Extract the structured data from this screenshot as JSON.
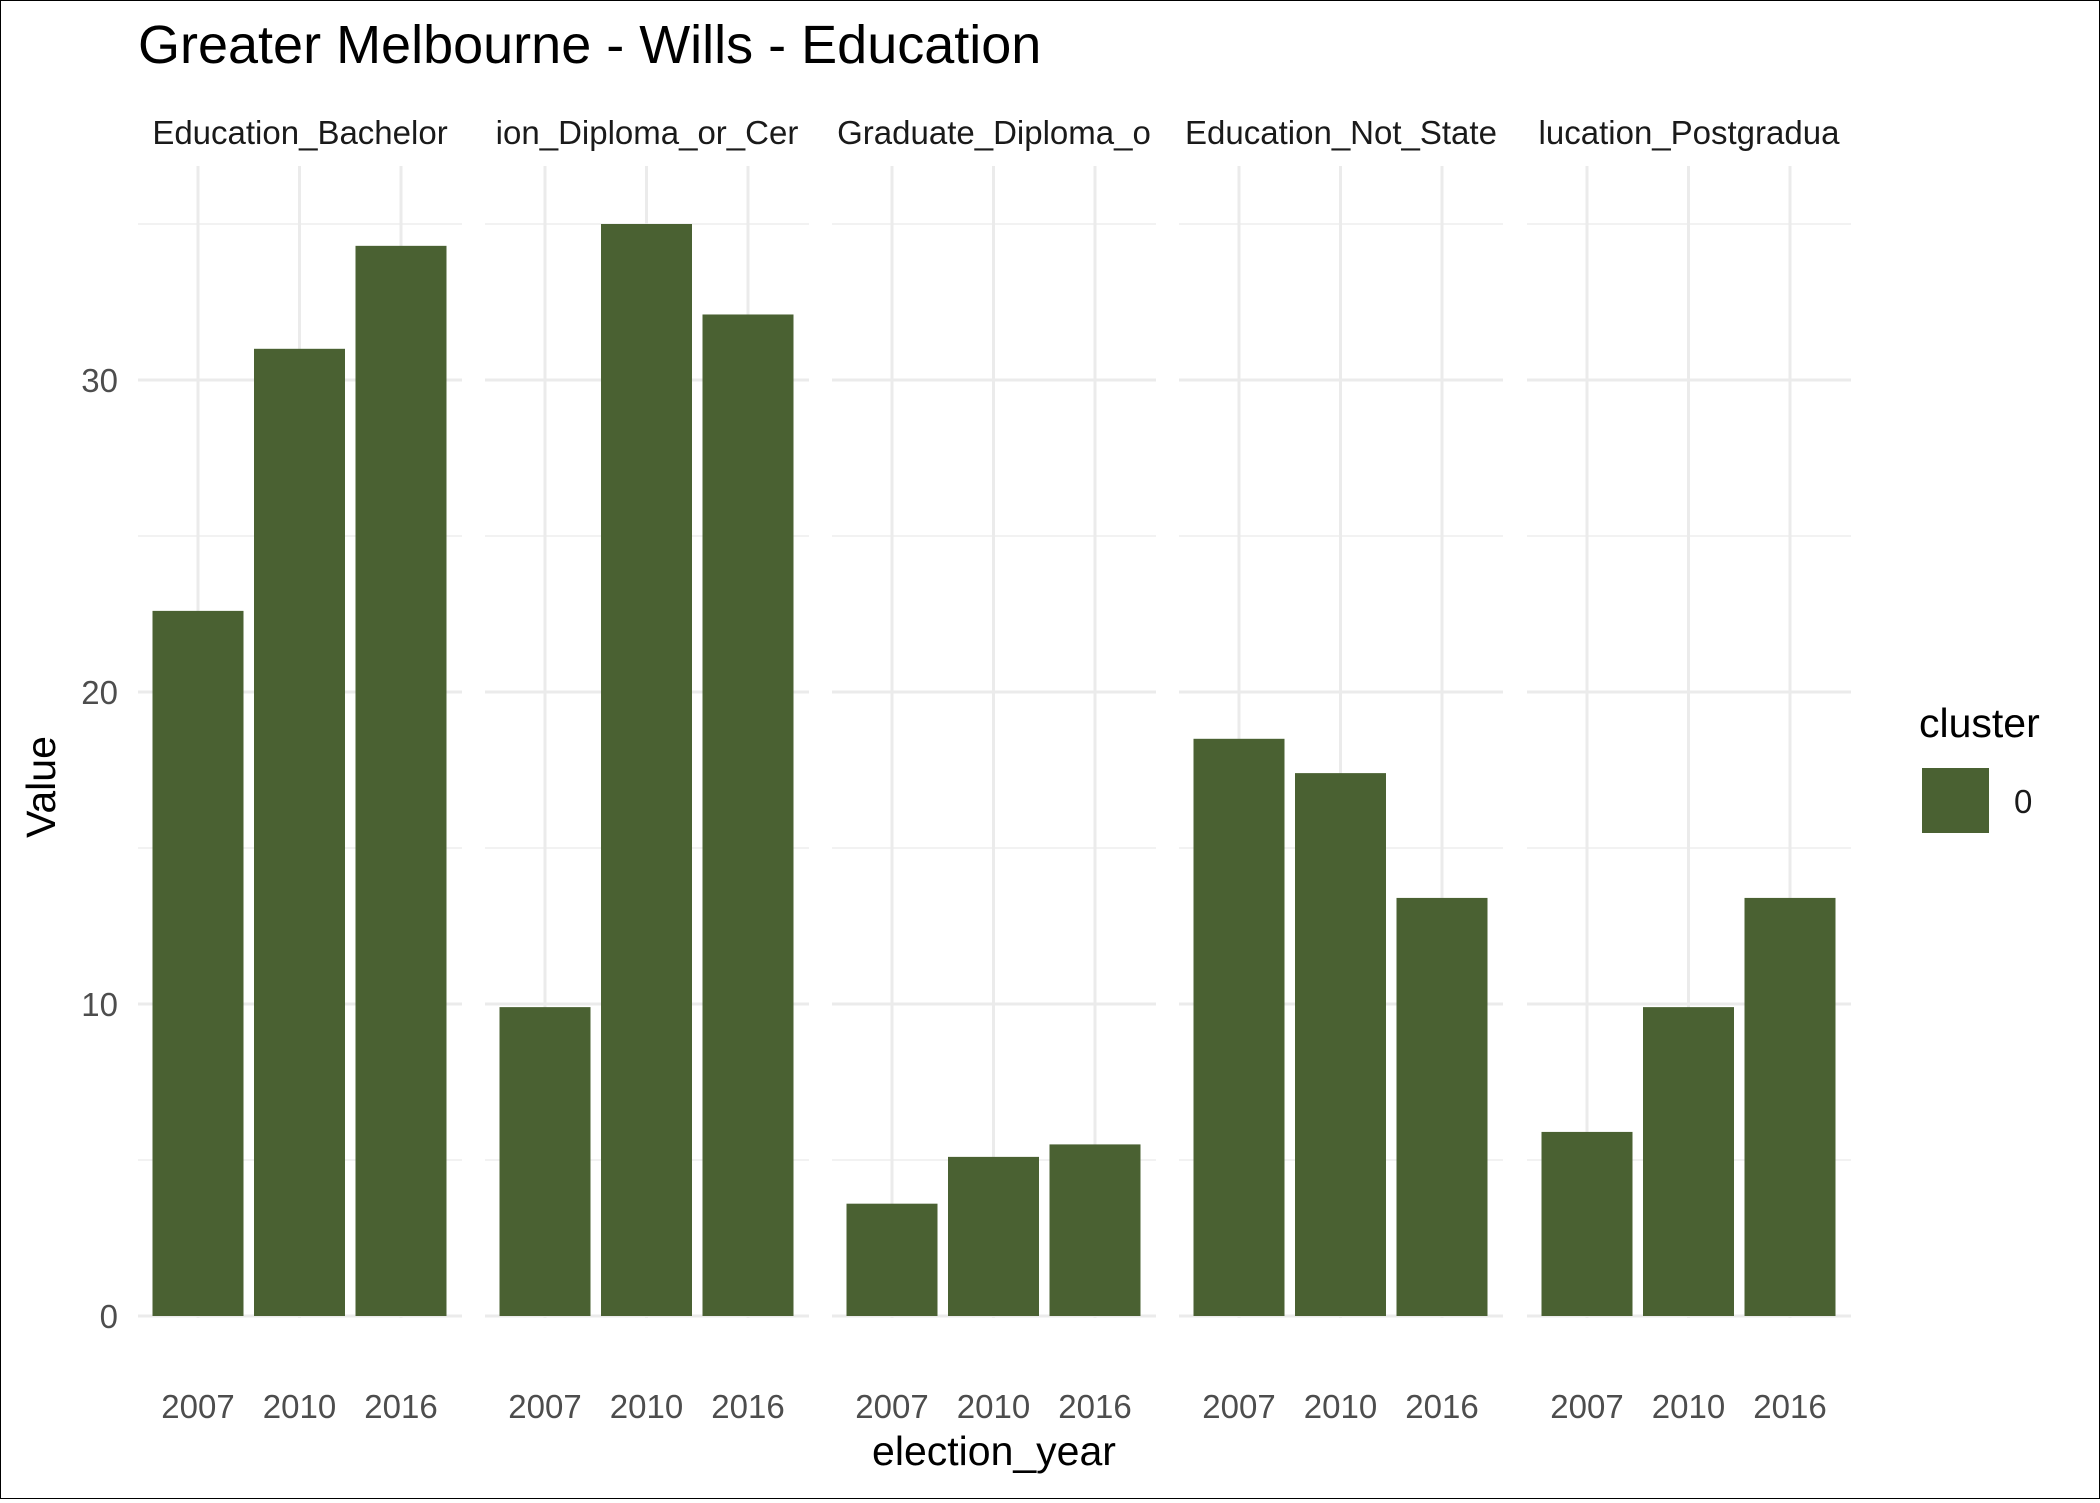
{
  "chart_data": {
    "type": "bar",
    "title": "Greater Melbourne - Wills - Education",
    "xlabel": "election_year",
    "ylabel": "Value",
    "categories": [
      "2007",
      "2010",
      "2016"
    ],
    "ylim": [
      0,
      36
    ],
    "y_ticks": [
      0,
      10,
      20,
      30
    ],
    "grid": true,
    "bar_color": "#4a6132",
    "panels": [
      {
        "label": "Education_Bachelor",
        "values": [
          22.6,
          31.0,
          34.3
        ]
      },
      {
        "label": "ion_Diploma_or_Cer",
        "values": [
          9.9,
          35.0,
          32.1
        ]
      },
      {
        "label": "Graduate_Diploma_o",
        "values": [
          3.6,
          5.1,
          5.5
        ]
      },
      {
        "label": "Education_Not_State",
        "values": [
          18.5,
          17.4,
          13.4
        ]
      },
      {
        "label": "lucation_Postgradua",
        "values": [
          5.9,
          9.9,
          13.4
        ]
      }
    ],
    "legend": {
      "title": "cluster",
      "placement": "right",
      "items": [
        {
          "label": "0",
          "color": "#4a6132"
        }
      ]
    }
  }
}
